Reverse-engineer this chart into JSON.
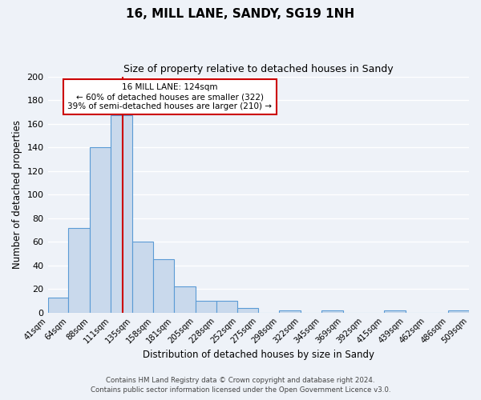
{
  "title": "16, MILL LANE, SANDY, SG19 1NH",
  "subtitle": "Size of property relative to detached houses in Sandy",
  "xlabel": "Distribution of detached houses by size in Sandy",
  "ylabel": "Number of detached properties",
  "bin_edges": [
    41,
    64,
    88,
    111,
    135,
    158,
    181,
    205,
    228,
    252,
    275,
    298,
    322,
    345,
    369,
    392,
    415,
    439,
    462,
    486,
    509
  ],
  "bar_heights": [
    13,
    72,
    140,
    167,
    60,
    45,
    22,
    10,
    10,
    4,
    0,
    2,
    0,
    2,
    0,
    0,
    2,
    0,
    0,
    2
  ],
  "bar_color": "#c9d9ec",
  "bar_edge_color": "#5b9bd5",
  "property_value": 124,
  "red_line_color": "#cc0000",
  "annotation_text": "16 MILL LANE: 124sqm\n← 60% of detached houses are smaller (322)\n39% of semi-detached houses are larger (210) →",
  "annotation_box_color": "#ffffff",
  "annotation_box_edge": "#cc0000",
  "ylim": [
    0,
    200
  ],
  "yticks": [
    0,
    20,
    40,
    60,
    80,
    100,
    120,
    140,
    160,
    180,
    200
  ],
  "footer1": "Contains HM Land Registry data © Crown copyright and database right 2024.",
  "footer2": "Contains public sector information licensed under the Open Government Licence v3.0.",
  "background_color": "#eef2f8",
  "grid_color": "#ffffff",
  "tick_labels": [
    "41sqm",
    "64sqm",
    "88sqm",
    "111sqm",
    "135sqm",
    "158sqm",
    "181sqm",
    "205sqm",
    "228sqm",
    "252sqm",
    "275sqm",
    "298sqm",
    "322sqm",
    "345sqm",
    "369sqm",
    "392sqm",
    "415sqm",
    "439sqm",
    "462sqm",
    "486sqm",
    "509sqm"
  ]
}
